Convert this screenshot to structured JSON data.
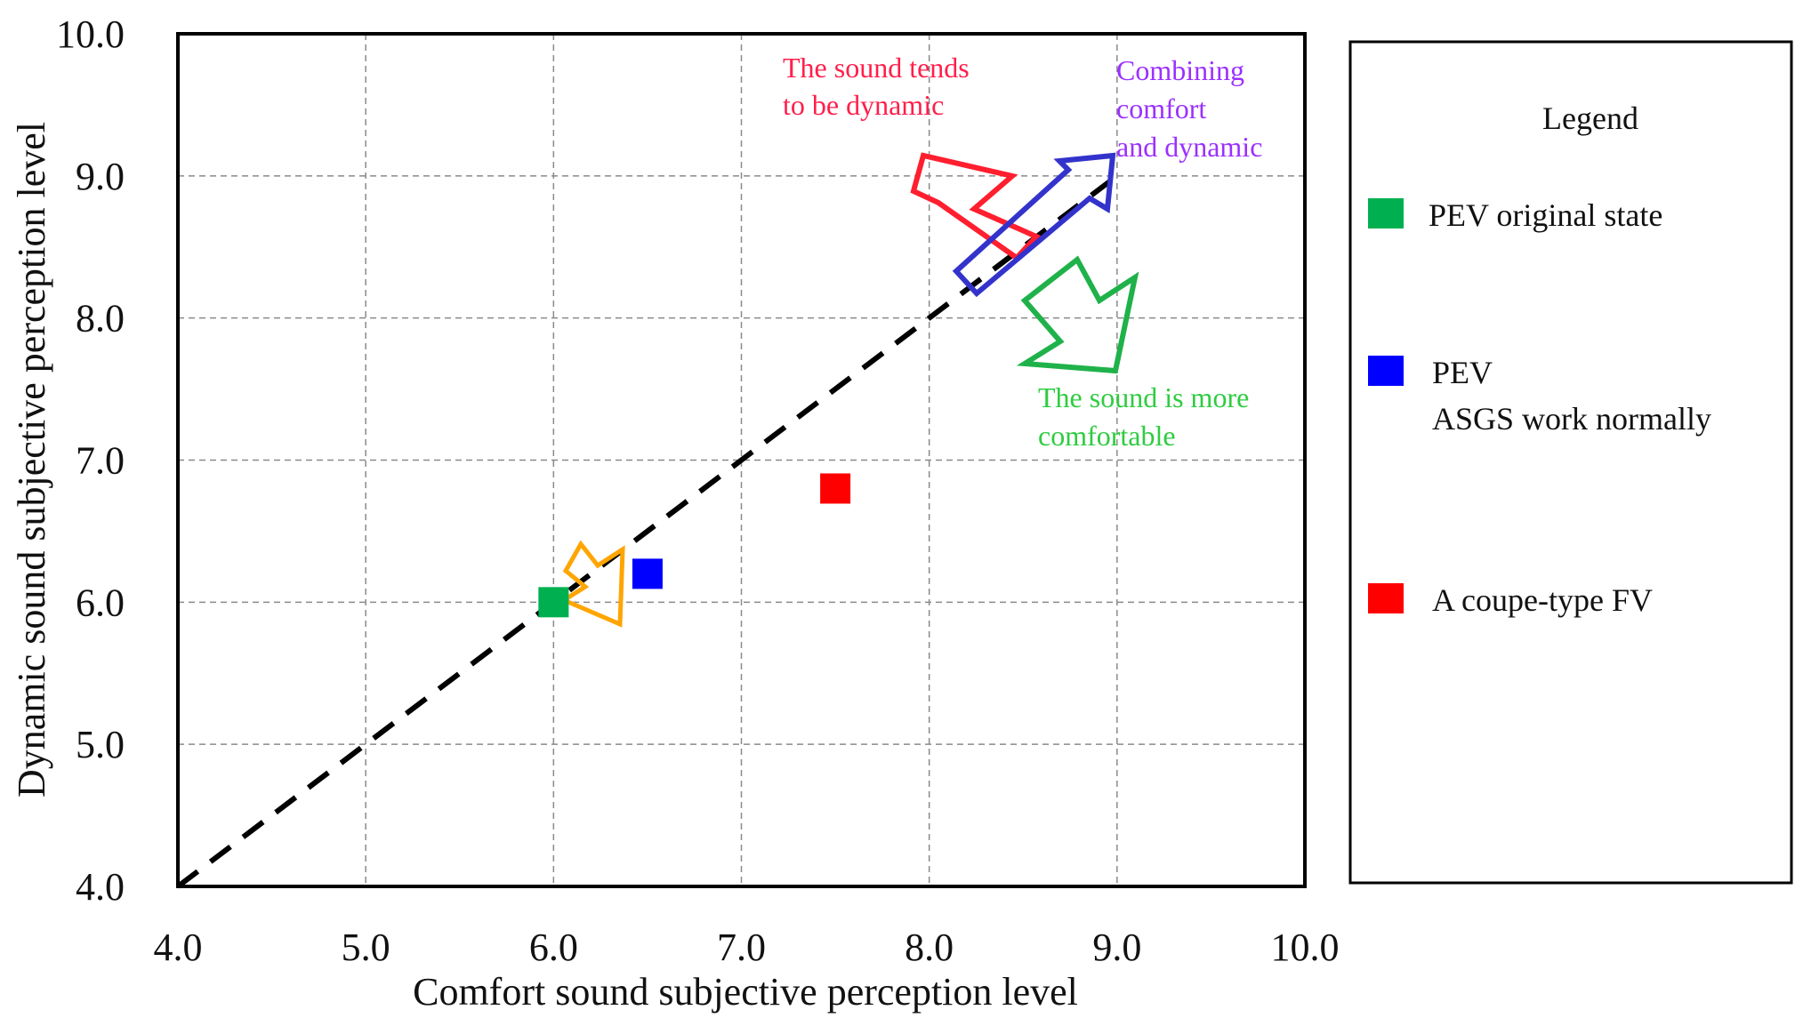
{
  "chart_data": {
    "type": "scatter",
    "xlabel": "Comfort sound subjective perception level",
    "ylabel": "Dynamic sound subjective perception level",
    "xlim": [
      4.0,
      10.0
    ],
    "ylim": [
      4.0,
      10.0
    ],
    "x_ticks": [
      "4.0",
      "5.0",
      "6.0",
      "7.0",
      "8.0",
      "9.0",
      "10.0"
    ],
    "y_ticks": [
      "4.0",
      "5.0",
      "6.0",
      "7.0",
      "8.0",
      "9.0",
      "10.0"
    ],
    "grid": true,
    "reference_line": {
      "from": [
        4.0,
        4.0
      ],
      "to": [
        9.0,
        9.0
      ],
      "style": "dashed"
    },
    "series": [
      {
        "name": "PEV original state",
        "color": "#00b050",
        "x": 6.0,
        "y": 6.0
      },
      {
        "name": "PEV\nASGS work normally",
        "legend_lines": [
          "PEV",
          "ASGS work normally"
        ],
        "color": "#0000ff",
        "x": 6.5,
        "y": 6.2
      },
      {
        "name": "A coupe-type FV",
        "color": "#ff0000",
        "x": 7.5,
        "y": 6.8
      }
    ],
    "annotations": [
      {
        "lines": [
          "The sound tends",
          "to be dynamic"
        ],
        "color": "#ff1f4b",
        "arrow_direction": "up-left"
      },
      {
        "lines": [
          "Combining",
          "comfort",
          "and dynamic"
        ],
        "color": "#9b30ff",
        "arrow_direction": "up-right"
      },
      {
        "lines": [
          "The sound is more",
          "comfortable"
        ],
        "color": "#2ecc40",
        "arrow_direction": "down-right"
      },
      {
        "lines": [],
        "color": "#ffa500",
        "arrow_direction": "up-right"
      }
    ],
    "legend": {
      "title": "Legend",
      "placement": "right"
    }
  }
}
